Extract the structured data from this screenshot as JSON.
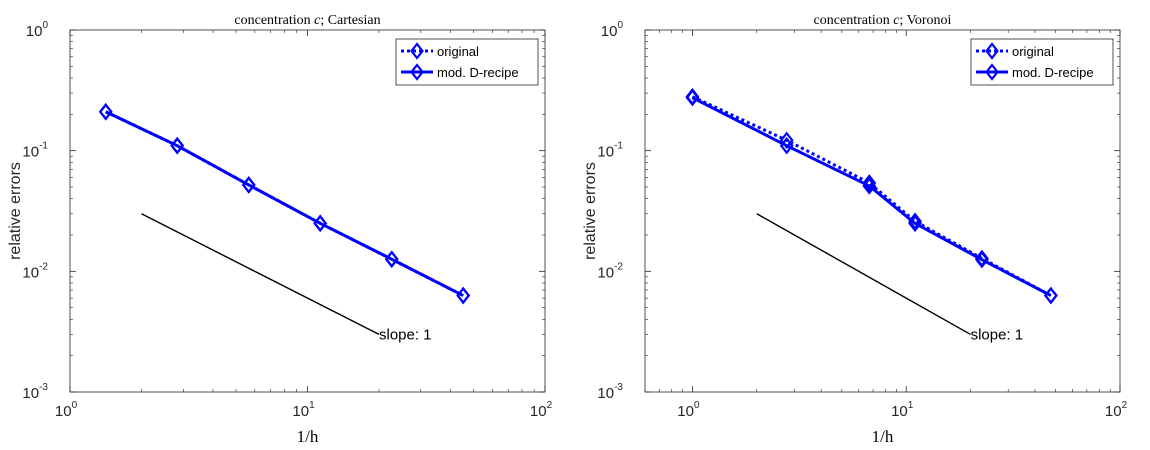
{
  "chart_data": [
    {
      "type": "line",
      "title": "concentration c; Cartesian",
      "xlabel": "1/h",
      "ylabel": "relative errors",
      "x_scale": "log",
      "y_scale": "log",
      "xlim": [
        1,
        100
      ],
      "ylim": [
        0.001,
        1
      ],
      "x_ticks": [
        1,
        10,
        100
      ],
      "x_tick_labels": [
        {
          "base": "10",
          "exp": "0"
        },
        {
          "base": "10",
          "exp": "1"
        },
        {
          "base": "10",
          "exp": "2"
        }
      ],
      "y_ticks": [
        0.001,
        0.01,
        0.1,
        1
      ],
      "y_tick_labels": [
        {
          "base": "10",
          "exp": "-3"
        },
        {
          "base": "10",
          "exp": "-2"
        },
        {
          "base": "10",
          "exp": "-1"
        },
        {
          "base": "10",
          "exp": "0"
        }
      ],
      "grid": false,
      "legend_position": "top-right",
      "series": [
        {
          "name": "original",
          "line_style": "dotted",
          "marker": "diamond",
          "color": "#0000ff",
          "x": [
            1.414,
            2.828,
            5.657,
            11.31,
            22.63,
            45.25
          ],
          "y": [
            0.21,
            0.11,
            0.052,
            0.025,
            0.0126,
            0.0063
          ]
        },
        {
          "name": "mod. D-recipe",
          "line_style": "solid",
          "marker": "diamond",
          "color": "#0000ff",
          "x": [
            1.414,
            2.828,
            5.657,
            11.31,
            22.63,
            45.25
          ],
          "y": [
            0.21,
            0.11,
            0.052,
            0.025,
            0.0126,
            0.0063
          ]
        }
      ],
      "reference_line": {
        "label": "slope: 1",
        "x": [
          2,
          20
        ],
        "y": [
          0.03,
          0.003
        ],
        "color": "#000000"
      }
    },
    {
      "type": "line",
      "title": "concentration c; Voronoi",
      "xlabel": "1/h",
      "ylabel": "relative errors",
      "x_scale": "log",
      "y_scale": "log",
      "xlim": [
        0.6,
        100
      ],
      "ylim": [
        0.001,
        1
      ],
      "x_ticks": [
        1,
        10,
        100
      ],
      "x_tick_labels": [
        {
          "base": "10",
          "exp": "0"
        },
        {
          "base": "10",
          "exp": "1"
        },
        {
          "base": "10",
          "exp": "2"
        }
      ],
      "y_ticks": [
        0.001,
        0.01,
        0.1,
        1
      ],
      "y_tick_labels": [
        {
          "base": "10",
          "exp": "-3"
        },
        {
          "base": "10",
          "exp": "-2"
        },
        {
          "base": "10",
          "exp": "-1"
        },
        {
          "base": "10",
          "exp": "0"
        }
      ],
      "grid": false,
      "legend_position": "top-right",
      "series": [
        {
          "name": "original",
          "line_style": "dotted",
          "marker": "diamond",
          "color": "#0000ff",
          "x": [
            1.0,
            2.76,
            6.72,
            11.0,
            22.6,
            47.5
          ],
          "y": [
            0.28,
            0.122,
            0.054,
            0.026,
            0.0128,
            0.0063
          ]
        },
        {
          "name": "mod. D-recipe",
          "line_style": "solid",
          "marker": "diamond",
          "color": "#0000ff",
          "x": [
            1.0,
            2.76,
            6.72,
            11.0,
            22.6,
            47.5
          ],
          "y": [
            0.275,
            0.11,
            0.051,
            0.025,
            0.0125,
            0.0063
          ]
        }
      ],
      "reference_line": {
        "label": "slope: 1",
        "x": [
          2,
          20
        ],
        "y": [
          0.03,
          0.003
        ],
        "color": "#000000"
      }
    }
  ]
}
